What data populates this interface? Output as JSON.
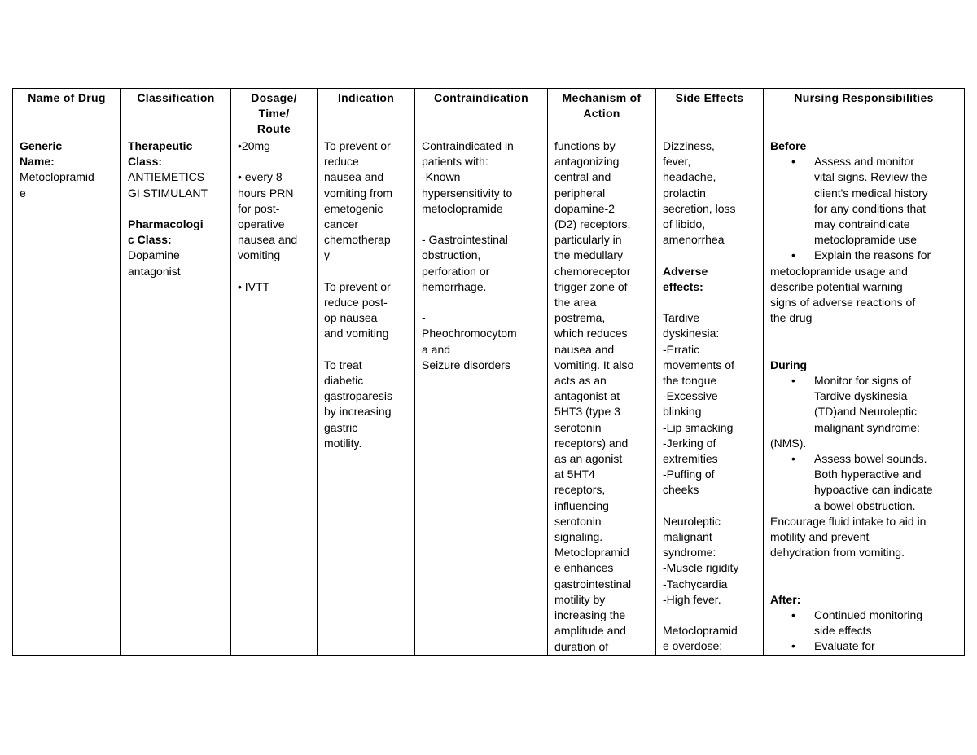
{
  "headers": [
    "Name of Drug",
    "Classification",
    "Dosage/\nTime/\nRoute",
    "Indication",
    "Contraindication",
    "Mechanism of\nAction",
    "Side Effects",
    "Nursing Responsibilities"
  ],
  "cells": [
    [
      {
        "t": "Generic",
        "b": true
      },
      {
        "t": "Name:",
        "b": true
      },
      "Metoclopramid",
      "e"
    ],
    [
      {
        "t": "Therapeutic",
        "b": true
      },
      {
        "t": "Class:",
        "b": true
      },
      "ANTIEMETICS",
      "GI STIMULANT",
      "",
      {
        "t": "Pharmacologi",
        "b": true
      },
      {
        "t": "c Class:",
        "b": true
      },
      "Dopamine",
      "antagonist"
    ],
    [
      "•20mg",
      "",
      "• every 8",
      "hours PRN",
      "for post-",
      "operative",
      "nausea and",
      "vomiting",
      "",
      "• IVTT"
    ],
    [
      "To prevent or",
      "reduce",
      "nausea and",
      "vomiting from",
      "emetogenic",
      "cancer",
      "chemotherap",
      "y",
      "",
      "To prevent or",
      "reduce post-",
      "op nausea",
      "and vomiting",
      "",
      "To treat",
      "diabetic",
      "gastroparesis",
      "by increasing",
      "gastric",
      "motility."
    ],
    [
      "Contraindicated in",
      "patients with:",
      "-Known",
      "hypersensitivity to",
      "metoclopramide",
      "",
      "- Gastrointestinal",
      "obstruction,",
      "perforation or",
      "hemorrhage.",
      "",
      "-",
      "Pheochromocytom",
      "a and",
      "Seizure disorders"
    ],
    [
      "functions by",
      "antagonizing",
      "central and",
      "peripheral",
      "dopamine-2",
      "(D2) receptors,",
      "particularly in",
      "the medullary",
      "chemoreceptor",
      "trigger zone of",
      "the area",
      "postrema,",
      "which reduces",
      "nausea and",
      "vomiting. It also",
      "acts as an",
      "antagonist at",
      "5HT3 (type 3",
      "serotonin",
      "receptors) and",
      "as an agonist",
      "at 5HT4",
      "receptors,",
      "influencing",
      "serotonin",
      "signaling.",
      "Metoclopramid",
      "e enhances",
      "gastrointestinal",
      "motility by",
      "increasing the",
      "amplitude and",
      "duration of"
    ],
    [
      "Dizziness,",
      "fever,",
      "headache,",
      "prolactin",
      "secretion, loss",
      "of libido,",
      "amenorrhea",
      "",
      {
        "t": "Adverse",
        "b": true
      },
      {
        "t": "effects:",
        "b": true
      },
      "",
      "Tardive",
      "dyskinesia:",
      "-Erratic",
      "movements of",
      "the tongue",
      "-Excessive",
      "blinking",
      "-Lip smacking",
      "-Jerking of",
      "extremities",
      "-Puffing of",
      "cheeks",
      "",
      "Neuroleptic",
      "malignant",
      "syndrome:",
      "-Muscle rigidity",
      "-Tachycardia",
      "-High fever.",
      "",
      "Metoclopramid",
      "e overdose:"
    ],
    [
      {
        "t": "Before",
        "b": true
      },
      {
        "t": "Assess and monitor",
        "bullet": true
      },
      {
        "t": "vital signs. Review the",
        "ind": true
      },
      {
        "t": "client's medical history",
        "ind": true
      },
      {
        "t": "for any conditions that",
        "ind": true
      },
      {
        "t": "may contraindicate",
        "ind": true
      },
      {
        "t": "metoclopramide use",
        "ind": true
      },
      {
        "t": "Explain the reasons for",
        "bullet": true
      },
      "metoclopramide usage and",
      "describe potential warning",
      "signs of adverse reactions of",
      "the drug",
      "",
      "",
      {
        "t": "During",
        "b": true
      },
      {
        "t": "Monitor for signs of",
        "bullet": true
      },
      {
        "t": "Tardive dyskinesia",
        "ind": true
      },
      {
        "t": "(TD)and Neuroleptic",
        "ind": true
      },
      {
        "t": "malignant syndrome:",
        "ind": true
      },
      "(NMS).",
      {
        "t": "Assess bowel sounds.",
        "bullet": true
      },
      {
        "t": "Both hyperactive and",
        "ind": true
      },
      {
        "t": "hypoactive can indicate",
        "ind": true
      },
      {
        "t": "a bowel obstruction.",
        "ind": true
      },
      "Encourage fluid intake to aid in",
      "motility and prevent",
      "dehydration from vomiting.",
      "",
      "",
      {
        "t": "After:",
        "b": true
      },
      {
        "t": "Continued monitoring",
        "bullet": true
      },
      {
        "t": "side effects",
        "ind": true
      },
      {
        "t": "Evaluate for",
        "bullet": true
      }
    ]
  ],
  "bullet_glyph": "•"
}
